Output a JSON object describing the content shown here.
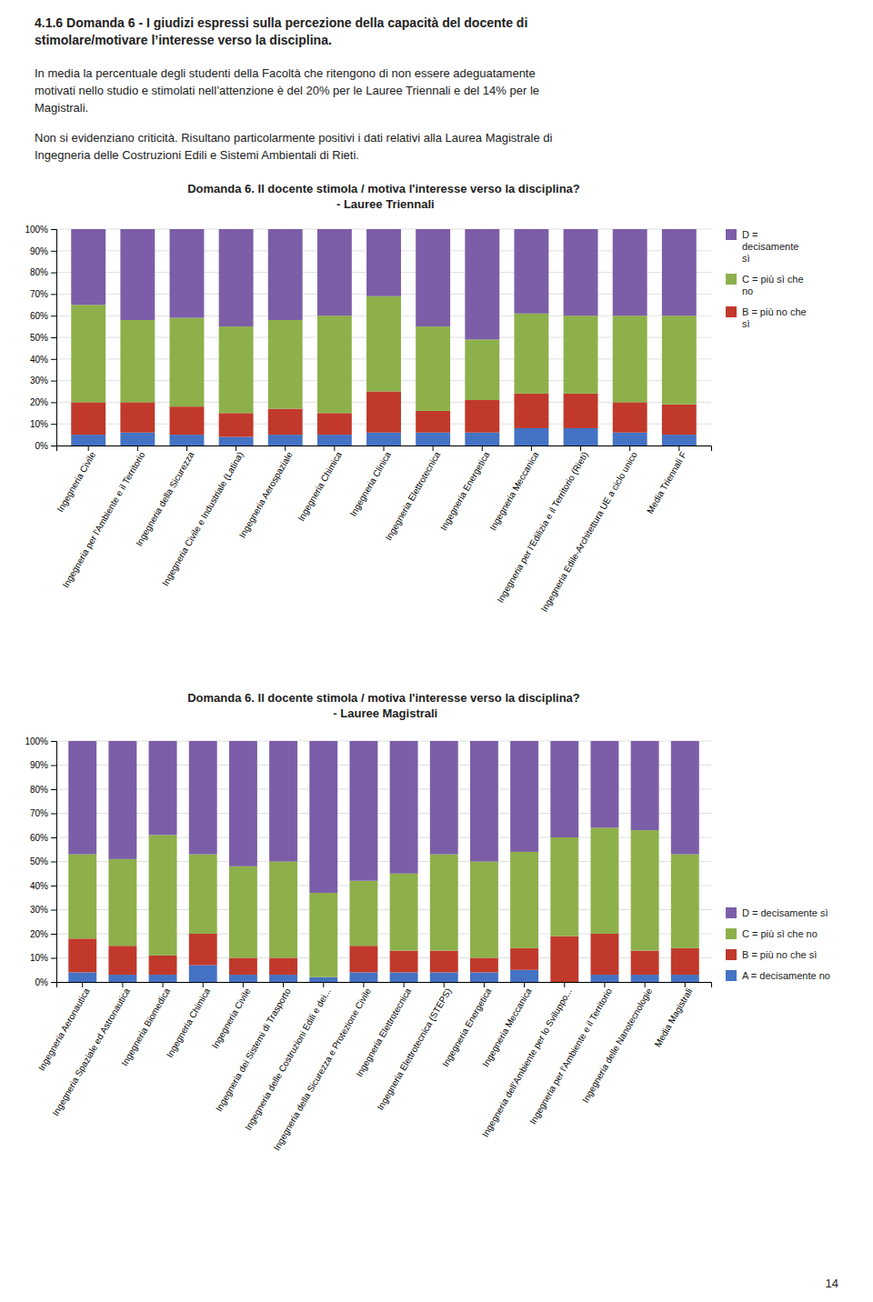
{
  "title": "4.1.6 Domanda 6 - I giudizi espressi sulla percezione della capacità del docente di\nstimolare/motivare l’interesse verso la disciplina.",
  "annotations": [
    "In media la percentuale degli studenti della Facoltà che ritengono di non essere adeguatamente\nmotivati nello studio e stimolati nell’attenzione è del 20% per le Lauree Triennali e del 14% per le\nMagistrali.",
    "Non si evidenziano criticità. Risultano particolarmente positivi i dati relativi alla Laurea Magistrale di\nIngegneria delle Costruzioni Edili e Sistemi Ambientali di Rieti.",
    "14"
  ],
  "chart_data": [
    {
      "type": "bar",
      "stacked": true,
      "title": "Domanda 6. Il docente stimola / motiva l'interesse verso la disciplina?\n - Lauree Triennali",
      "categories": [
        "Ingegneria Civile",
        "Ingegneria per l'Ambiente e il Territorio",
        "Ingegneria della Sicurezza",
        "Ingegneria Civile e Industriale (Latina)",
        "Ingegneria Aerospaziale",
        "Ingegneria Chimica",
        "Ingegneria Clinica",
        "Ingegneria Elettrotecnica",
        "Ingegneria Energetica",
        "Ingegneria Meccanica",
        "Ingegneria per l'Edilizia e il Territorio (Rieti)",
        "Ingegneria Edile-Architettura UE a ciclo unico",
        "Media Triennali F"
      ],
      "series": [
        {
          "color": "#4472C4",
          "values": [
            5,
            6,
            5,
            4,
            5,
            5,
            6,
            6,
            6,
            8,
            8,
            6,
            5
          ]
        },
        {
          "name": "B = più no che\nsì",
          "color": "#C0392B",
          "values": [
            15,
            14,
            13,
            11,
            12,
            10,
            19,
            10,
            15,
            16,
            16,
            14,
            14
          ]
        },
        {
          "name": "C = più sì che\nno",
          "color": "#8DB04A",
          "values": [
            45,
            38,
            41,
            40,
            41,
            45,
            44,
            39,
            28,
            37,
            36,
            40,
            41
          ]
        },
        {
          "name": "D =\ndecisamente\nsì",
          "color": "#7B5EA7",
          "values": [
            35,
            42,
            41,
            45,
            42,
            40,
            31,
            45,
            51,
            39,
            40,
            40,
            40
          ]
        }
      ],
      "ylim": [
        0,
        100
      ],
      "yticks": [
        {
          "value": 0,
          "label": "0%"
        },
        {
          "value": 10,
          "label": "10%"
        },
        {
          "value": 20,
          "label": "20%"
        },
        {
          "value": 30,
          "label": "30%"
        },
        {
          "value": 40,
          "label": "40%"
        },
        {
          "value": 50,
          "label": "50%"
        },
        {
          "value": 60,
          "label": "60%"
        },
        {
          "value": 70,
          "label": "70%"
        },
        {
          "value": 80,
          "label": "80%"
        },
        {
          "value": 90,
          "label": "90%"
        },
        {
          "value": 100,
          "label": "100%"
        }
      ],
      "grid": true,
      "legend": "upper right"
    },
    {
      "type": "bar",
      "stacked": true,
      "title": "Domanda 6. Il docente stimola / motiva l'interesse verso la disciplina?\n - Lauree Magistrali",
      "categories": [
        "Ingegneria Aeronautica",
        "Ingegneria Spaziale ed Astronautica",
        "Ingegneria Biomedica",
        "Ingegneria Chimica",
        "Ingegneria Civile",
        "Ingegneria dei Sistemi di Trasporto",
        "Ingegneria delle Costruzioni Edili e dei...",
        "Ingegneria della Sicurezza e Protezione Civile",
        "Ingegneria Elettrotecnica",
        "Ingegneria Elettrotecnica (STEPS)",
        "Ingegneria Energetica",
        "Ingegneria Meccanica",
        "Ingegneria dell'Ambiente per lo Sviluppo...",
        "Ingegneria per l'Ambiente e il Territorio",
        "Ingegneria delle Nanotecnologie",
        "Media Magistrali"
      ],
      "series": [
        {
          "name": "A = decisamente no",
          "color": "#4472C4",
          "values": [
            4,
            3,
            3,
            7,
            3,
            3,
            2,
            4,
            4,
            4,
            4,
            5,
            0,
            3,
            3,
            3
          ]
        },
        {
          "name": "B = più no che sì",
          "color": "#C0392B",
          "values": [
            14,
            12,
            8,
            13,
            7,
            7,
            0,
            11,
            9,
            9,
            6,
            9,
            19,
            17,
            10,
            11
          ]
        },
        {
          "name": "C = più sì che no",
          "color": "#8DB04A",
          "values": [
            35,
            36,
            50,
            33,
            38,
            40,
            35,
            27,
            32,
            40,
            40,
            40,
            41,
            44,
            50,
            39
          ]
        },
        {
          "name": "D = decisamente sì",
          "color": "#7B5EA7",
          "values": [
            47,
            49,
            39,
            47,
            52,
            50,
            63,
            58,
            55,
            47,
            50,
            46,
            40,
            36,
            37,
            47
          ]
        }
      ],
      "ylim": [
        0,
        100
      ],
      "yticks": [
        {
          "value": 0,
          "label": "0%"
        },
        {
          "value": 10,
          "label": "10%"
        },
        {
          "value": 20,
          "label": "20%"
        },
        {
          "value": 30,
          "label": "30%"
        },
        {
          "value": 40,
          "label": "40%"
        },
        {
          "value": 50,
          "label": "50%"
        },
        {
          "value": 60,
          "label": "60%"
        },
        {
          "value": 70,
          "label": "70%"
        },
        {
          "value": 80,
          "label": "80%"
        },
        {
          "value": 90,
          "label": "90%"
        },
        {
          "value": 100,
          "label": "100%"
        }
      ],
      "grid": true,
      "legend": "lower right"
    }
  ]
}
